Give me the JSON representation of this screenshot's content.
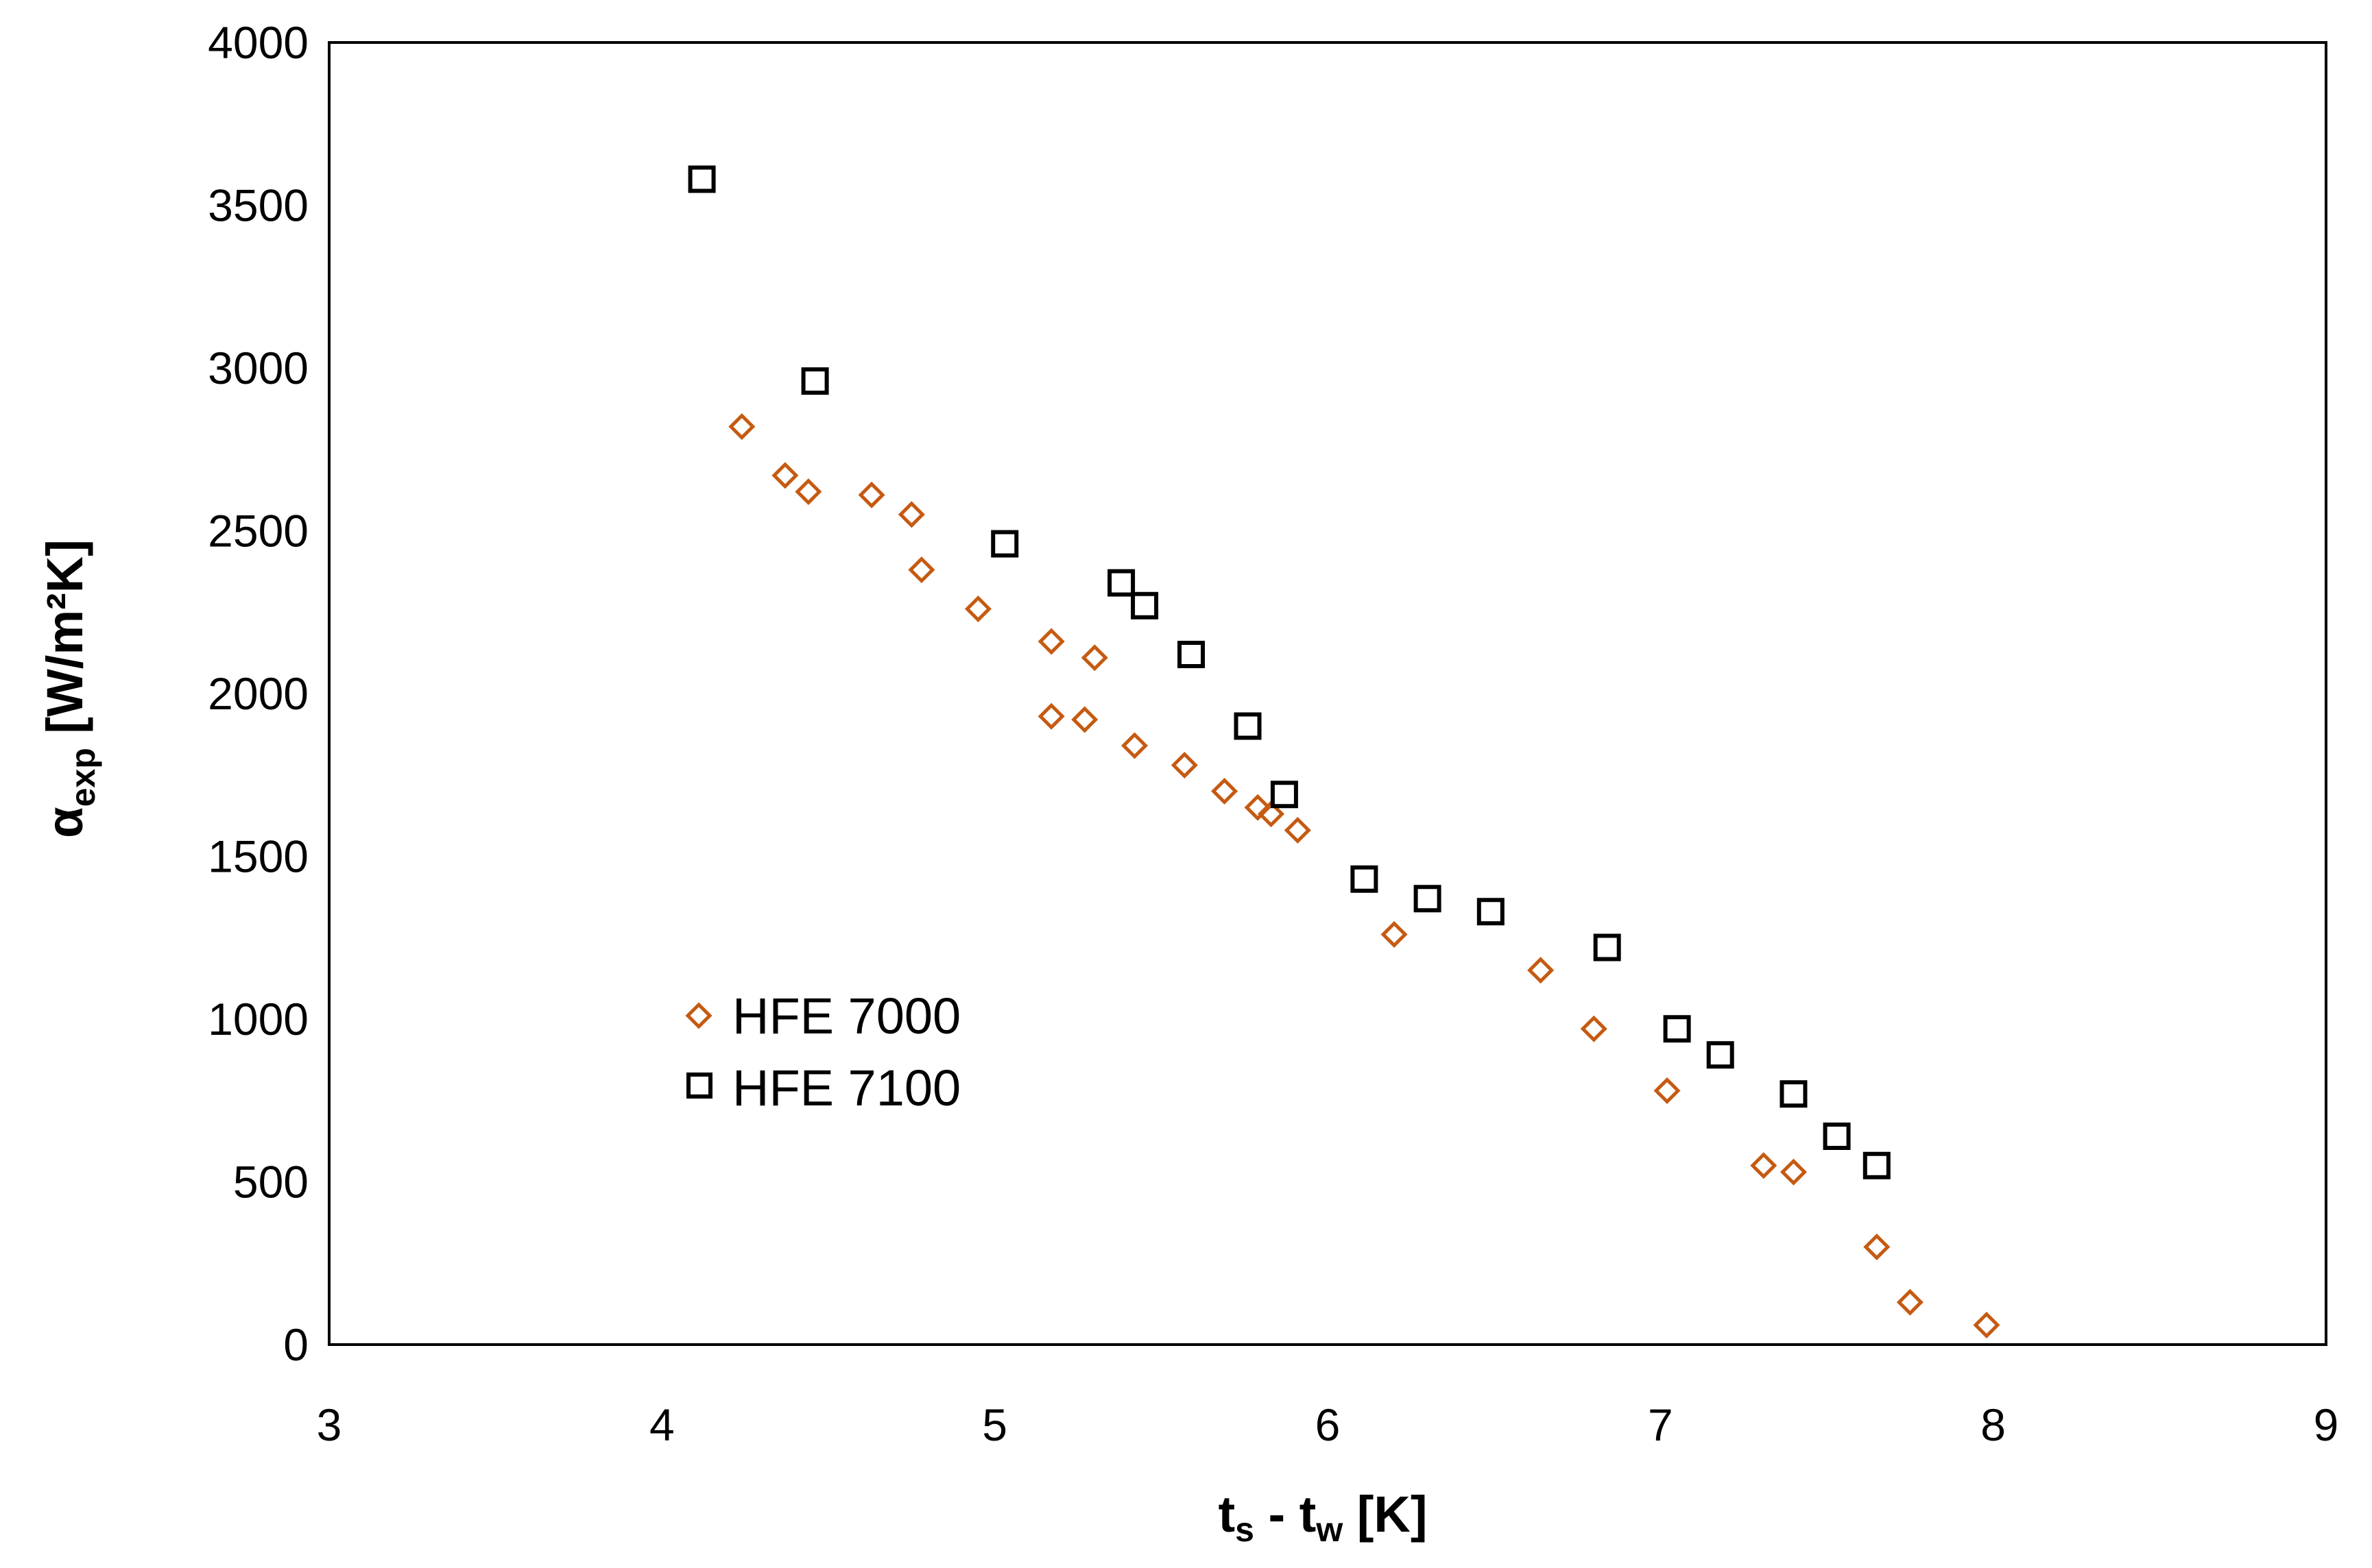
{
  "chart_data": {
    "type": "scatter",
    "title": "",
    "xlabel": {
      "main": "t",
      "sub1": "s",
      "mid": " - t",
      "sub2": "w",
      "unit": " [K]"
    },
    "ylabel": {
      "main": "α",
      "sub": "exp",
      "unit": " [W/m²K]"
    },
    "xlim": [
      3,
      9
    ],
    "ylim": [
      0,
      4000
    ],
    "xticks": [
      3,
      4,
      5,
      6,
      7,
      8,
      9
    ],
    "yticks": [
      0,
      500,
      1000,
      1500,
      2000,
      2500,
      3000,
      3500,
      4000
    ],
    "grid": false,
    "legend_position": "lower-left",
    "series": [
      {
        "name": "HFE 7000",
        "marker": "diamond",
        "color": "#C55A11",
        "points": [
          [
            4.24,
            2820
          ],
          [
            4.37,
            2670
          ],
          [
            4.44,
            2620
          ],
          [
            4.63,
            2610
          ],
          [
            4.75,
            2550
          ],
          [
            4.78,
            2380
          ],
          [
            4.95,
            2260
          ],
          [
            5.17,
            2160
          ],
          [
            5.3,
            2110
          ],
          [
            5.17,
            1930
          ],
          [
            5.27,
            1920
          ],
          [
            5.42,
            1840
          ],
          [
            5.57,
            1780
          ],
          [
            5.69,
            1700
          ],
          [
            5.79,
            1650
          ],
          [
            5.83,
            1630
          ],
          [
            5.91,
            1580
          ],
          [
            6.2,
            1260
          ],
          [
            6.64,
            1150
          ],
          [
            6.8,
            970
          ],
          [
            7.02,
            780
          ],
          [
            7.31,
            550
          ],
          [
            7.4,
            530
          ],
          [
            7.65,
            300
          ],
          [
            7.75,
            130
          ],
          [
            7.98,
            60
          ]
        ]
      },
      {
        "name": "HFE 7100",
        "marker": "square",
        "color": "#000000",
        "points": [
          [
            4.12,
            3580
          ],
          [
            4.46,
            2960
          ],
          [
            5.03,
            2460
          ],
          [
            5.38,
            2340
          ],
          [
            5.45,
            2270
          ],
          [
            5.59,
            2120
          ],
          [
            5.76,
            1900
          ],
          [
            5.87,
            1690
          ],
          [
            6.11,
            1430
          ],
          [
            6.3,
            1370
          ],
          [
            6.49,
            1330
          ],
          [
            6.84,
            1220
          ],
          [
            7.05,
            970
          ],
          [
            7.18,
            890
          ],
          [
            7.4,
            770
          ],
          [
            7.53,
            640
          ],
          [
            7.65,
            550
          ]
        ]
      }
    ]
  }
}
